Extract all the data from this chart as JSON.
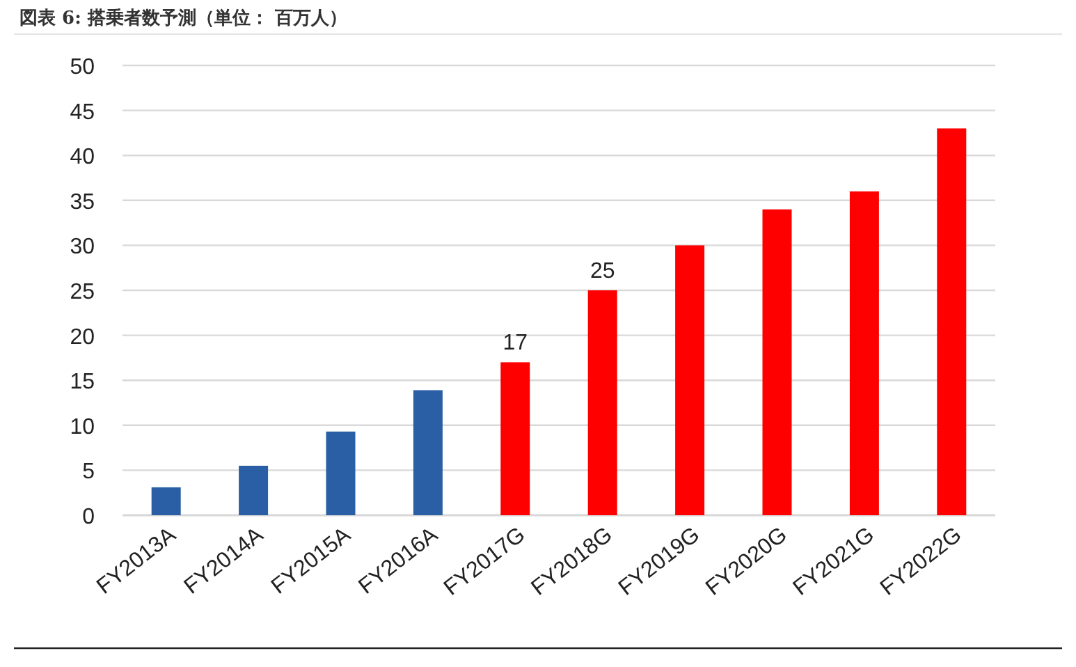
{
  "chart_data": {
    "type": "bar",
    "title": "図表 6: 搭乗者数予測（単位： 百万人）",
    "categories": [
      "FY2013A",
      "FY2014A",
      "FY2015A",
      "FY2016A",
      "FY2017G",
      "FY2018G",
      "FY2019G",
      "FY2020G",
      "FY2021G",
      "FY2022G"
    ],
    "values": [
      3.1,
      5.5,
      9.3,
      13.9,
      17,
      25,
      30,
      34,
      36,
      43
    ],
    "colors": [
      "#2a5fa5",
      "#2a5fa5",
      "#2a5fa5",
      "#2a5fa5",
      "#ff0000",
      "#ff0000",
      "#ff0000",
      "#ff0000",
      "#ff0000",
      "#ff0000"
    ],
    "value_labels": [
      null,
      null,
      null,
      null,
      "17",
      "25",
      null,
      null,
      null,
      null
    ],
    "ylim": [
      0,
      50
    ],
    "yticks": [
      0,
      5,
      10,
      15,
      20,
      25,
      30,
      35,
      40,
      45,
      50
    ],
    "grid": "y"
  }
}
